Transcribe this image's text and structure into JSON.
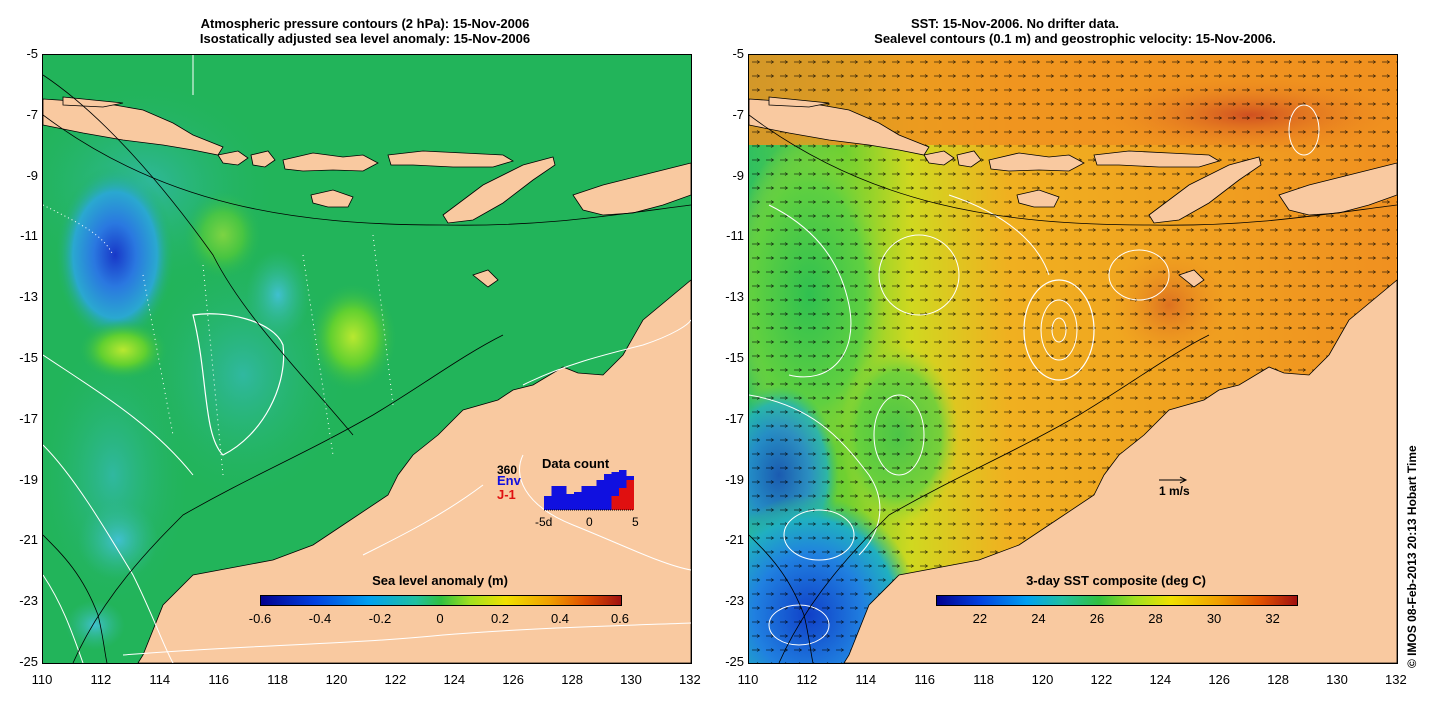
{
  "left_panel": {
    "title_line1": "Atmospheric pressure contours (2 hPa): 15-Nov-2006",
    "title_line2": "Isostatically adjusted sea level anomaly: 15-Nov-2006",
    "y_ticks": [
      "-5",
      "-7",
      "-9",
      "-11",
      "-13",
      "-15",
      "-17",
      "-19",
      "-21",
      "-23",
      "-25"
    ],
    "x_ticks": [
      "110",
      "112",
      "114",
      "116",
      "118",
      "120",
      "122",
      "124",
      "126",
      "128",
      "130",
      "132"
    ],
    "colorbar": {
      "title": "Sea level anomaly (m)",
      "ticks": [
        "-0.6",
        "-0.4",
        "-0.2",
        "0",
        "0.2",
        "0.4",
        "0.6"
      ],
      "range": [
        -0.6,
        0.6
      ]
    },
    "data_count": {
      "title": "Data count",
      "max_label": "360",
      "env_label": "Env",
      "j1_label": "J-1",
      "x_ticks": [
        "-5d",
        "0",
        "5"
      ],
      "env_color": "#1010e0",
      "j1_color": "#e01010",
      "env_values": [
        0.35,
        0.6,
        0.6,
        0.4,
        0.45,
        0.6,
        0.6,
        0.75,
        0.9,
        0.95,
        1.0,
        0.85
      ],
      "j1_values": [
        0,
        0,
        0,
        0,
        0,
        0,
        0,
        0,
        0,
        0.35,
        0.55,
        0.75
      ]
    }
  },
  "right_panel": {
    "title_line1": "SST: 15-Nov-2006. No drifter data.",
    "title_line2": "Sealevel contours (0.1 m) and geostrophic velocity: 15-Nov-2006.",
    "y_ticks": [
      "-5",
      "-7",
      "-9",
      "-11",
      "-13",
      "-15",
      "-17",
      "-19",
      "-21",
      "-23",
      "-25"
    ],
    "x_ticks": [
      "110",
      "112",
      "114",
      "116",
      "118",
      "120",
      "122",
      "124",
      "126",
      "128",
      "130",
      "132"
    ],
    "colorbar": {
      "title": "3-day SST composite (deg C)",
      "ticks": [
        "22",
        "24",
        "26",
        "28",
        "30",
        "32"
      ],
      "range": [
        20.5,
        32.8
      ]
    },
    "velocity_scale_label": "1 m/s"
  },
  "credit": "© IMOS 08-Feb-2013 20:13 Hobart Time",
  "colors": {
    "land": "#f9c9a0",
    "sea_green": "#22b45a",
    "sst_orange": "#f0a028"
  }
}
